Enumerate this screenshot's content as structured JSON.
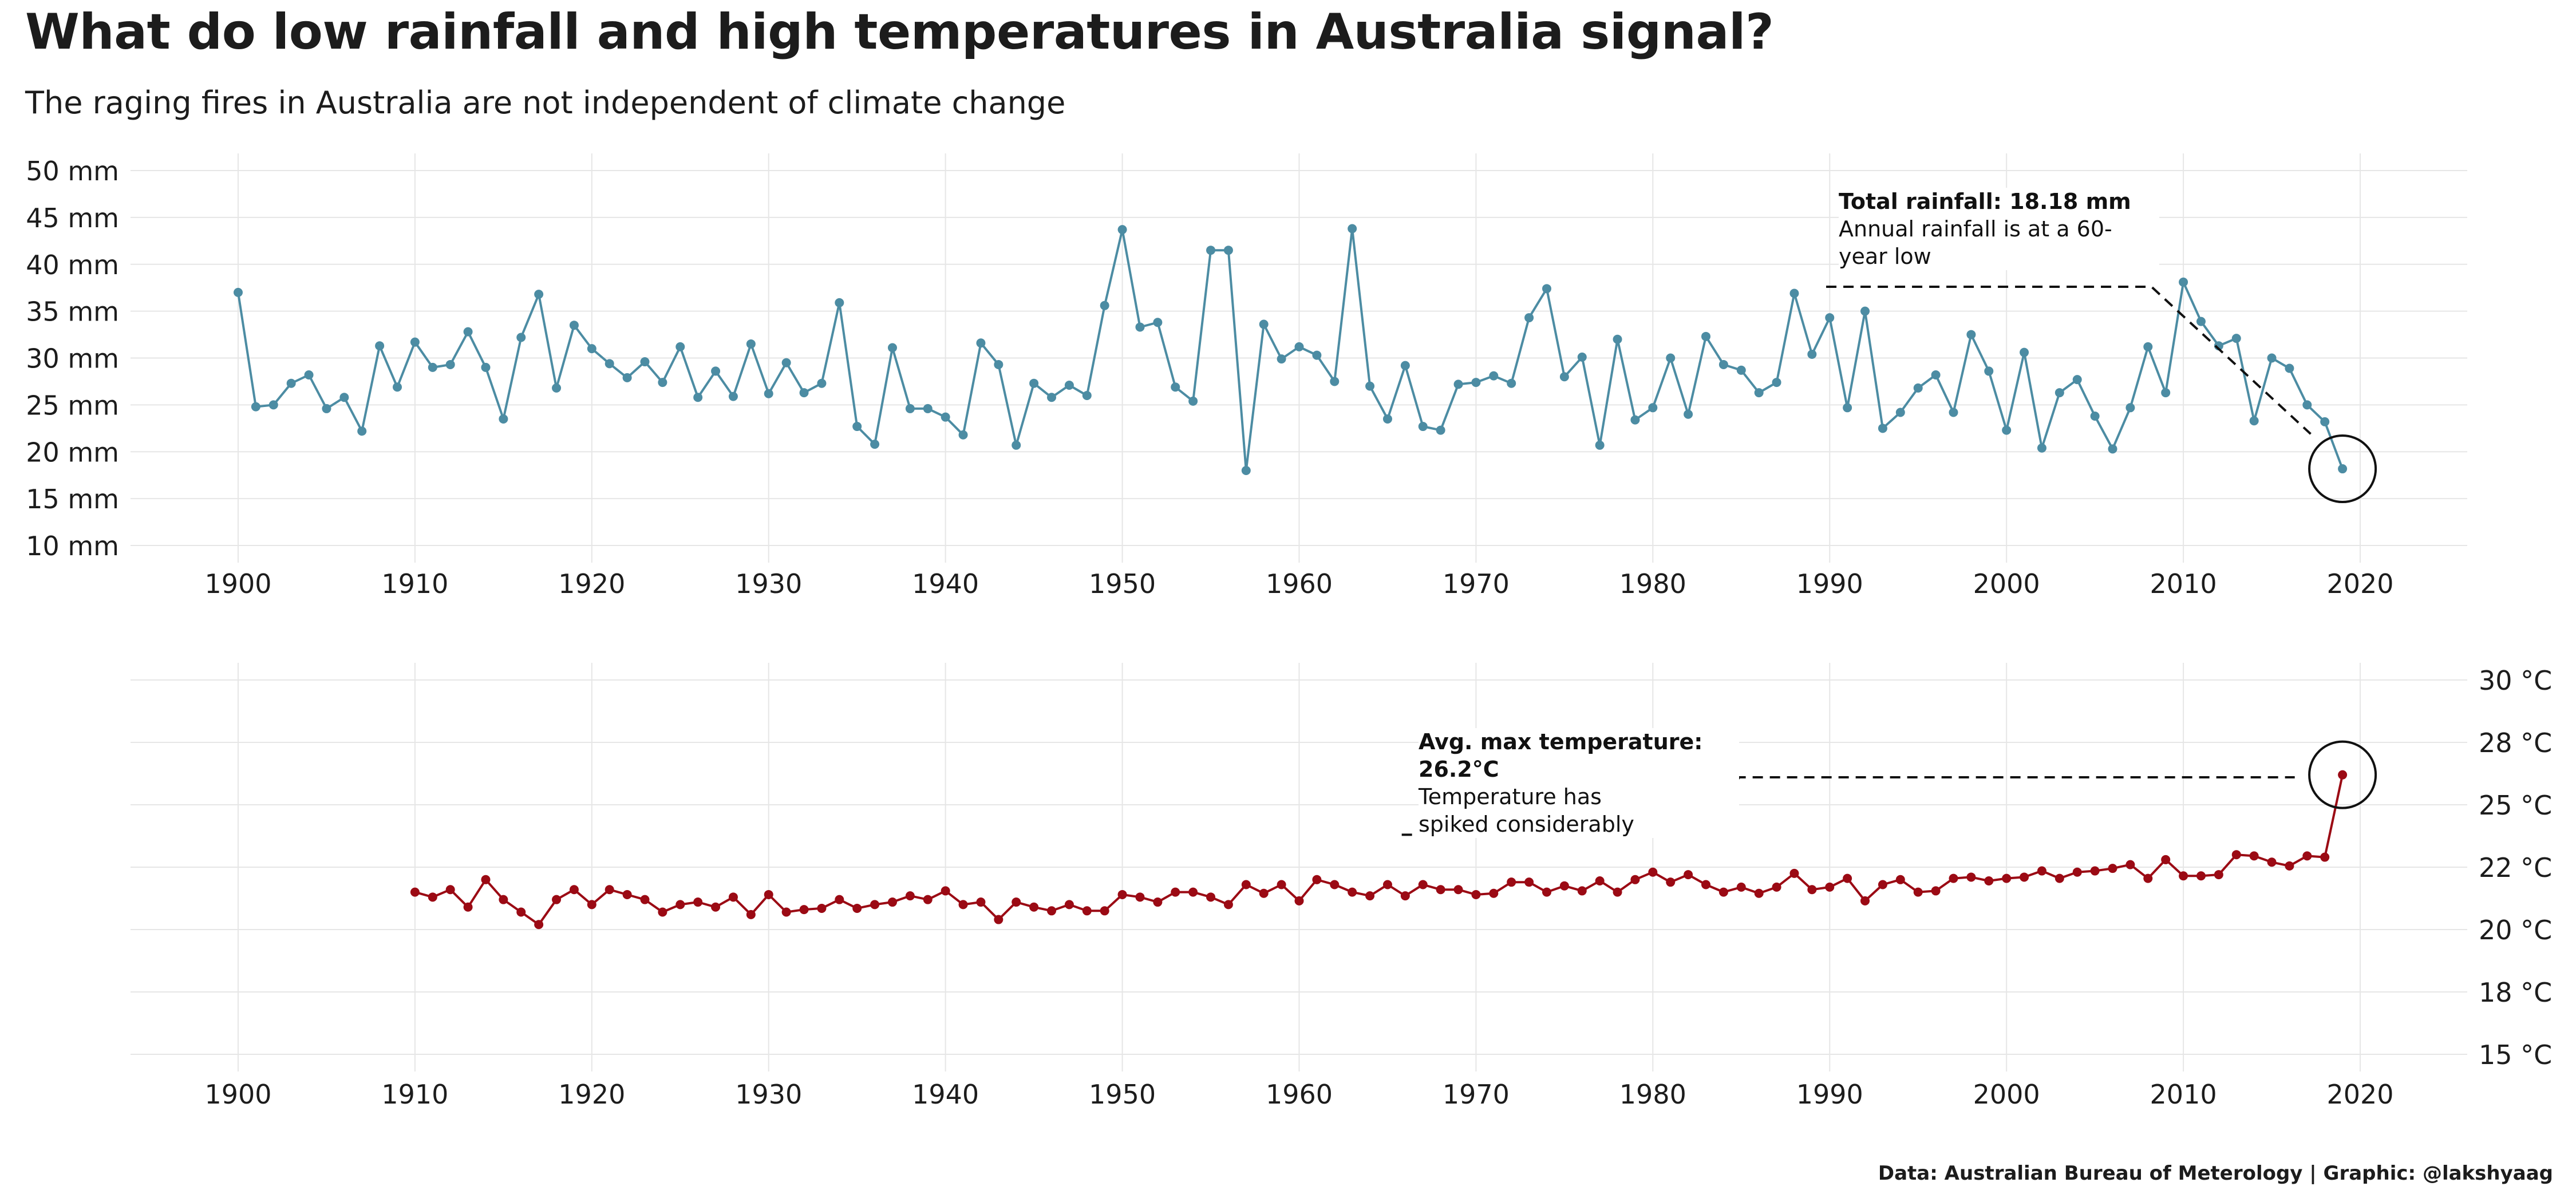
{
  "title": "What do low rainfall and high temperatures in Australia signal?",
  "subtitle": "The raging fires in Australia are not independent of climate change",
  "caption": "Data: Australian Bureau of Meterology | Graphic: @lakshyaag",
  "colors": {
    "rain": "#4c8ca3",
    "temp": "#9b0a14",
    "grid": "#e6e6e6"
  },
  "chart_data": [
    {
      "type": "line",
      "name": "rainfall",
      "title": "",
      "xlabel": "",
      "ylabel": "",
      "x": [
        1900,
        1901,
        1902,
        1903,
        1904,
        1905,
        1906,
        1907,
        1908,
        1909,
        1910,
        1911,
        1912,
        1913,
        1914,
        1915,
        1916,
        1917,
        1918,
        1919,
        1920,
        1921,
        1922,
        1923,
        1924,
        1925,
        1926,
        1927,
        1928,
        1929,
        1930,
        1931,
        1932,
        1933,
        1934,
        1935,
        1936,
        1937,
        1938,
        1939,
        1940,
        1941,
        1942,
        1943,
        1944,
        1945,
        1946,
        1947,
        1948,
        1949,
        1950,
        1951,
        1952,
        1953,
        1954,
        1955,
        1956,
        1957,
        1958,
        1959,
        1960,
        1961,
        1962,
        1963,
        1964,
        1965,
        1966,
        1967,
        1968,
        1969,
        1970,
        1971,
        1972,
        1973,
        1974,
        1975,
        1976,
        1977,
        1978,
        1979,
        1980,
        1981,
        1982,
        1983,
        1984,
        1985,
        1986,
        1987,
        1988,
        1989,
        1990,
        1991,
        1992,
        1993,
        1994,
        1995,
        1996,
        1997,
        1998,
        1999,
        2000,
        2001,
        2002,
        2003,
        2004,
        2005,
        2006,
        2007,
        2008,
        2009,
        2010,
        2011,
        2012,
        2013,
        2014,
        2015,
        2016,
        2017,
        2018,
        2019
      ],
      "values": [
        37.0,
        24.8,
        25.0,
        27.3,
        28.2,
        24.6,
        25.8,
        22.2,
        31.3,
        26.9,
        31.7,
        29.0,
        29.3,
        32.8,
        29.0,
        23.5,
        32.2,
        36.8,
        26.8,
        33.5,
        31.0,
        29.4,
        27.9,
        29.6,
        27.4,
        31.2,
        25.8,
        28.6,
        25.9,
        31.5,
        26.2,
        29.5,
        26.3,
        27.3,
        35.9,
        22.7,
        20.8,
        31.1,
        24.6,
        24.6,
        23.7,
        21.8,
        31.6,
        29.3,
        20.7,
        27.3,
        25.8,
        27.1,
        26.0,
        35.6,
        43.7,
        33.3,
        33.8,
        26.9,
        25.4,
        41.5,
        41.5,
        18.0,
        33.6,
        29.9,
        31.2,
        30.3,
        27.5,
        43.8,
        27.0,
        23.5,
        29.2,
        22.7,
        22.3,
        27.2,
        27.4,
        28.1,
        27.3,
        34.3,
        37.4,
        28.0,
        30.1,
        20.7,
        32.0,
        23.4,
        24.7,
        30.0,
        24.0,
        32.3,
        29.3,
        28.7,
        26.3,
        27.4,
        36.9,
        30.4,
        34.3,
        24.7,
        35.0,
        22.5,
        24.2,
        26.8,
        28.2,
        24.2,
        32.5,
        28.6,
        22.3,
        30.6,
        20.4,
        26.3,
        27.7,
        23.8,
        20.3,
        24.7,
        31.2,
        26.3,
        38.1,
        33.9,
        31.3,
        32.1,
        23.3,
        30.0,
        28.9,
        25.0,
        23.2,
        18.18
      ],
      "ylim": [
        10,
        50
      ],
      "yticks": [
        10,
        15,
        20,
        25,
        30,
        35,
        40,
        45,
        50
      ],
      "ytick_labels": [
        "10 mm",
        "15 mm",
        "20 mm",
        "25 mm",
        "30 mm",
        "35 mm",
        "40 mm",
        "45 mm",
        "50 mm"
      ],
      "xticks": [
        1900,
        1910,
        1920,
        1930,
        1940,
        1950,
        1960,
        1970,
        1980,
        1990,
        2000,
        2010,
        2020
      ],
      "xtick_labels": [
        "1900",
        "1910",
        "1920",
        "1930",
        "1940",
        "1950",
        "1960",
        "1970",
        "1980",
        "1990",
        "2000",
        "2010",
        "2020"
      ],
      "highlight": {
        "x": 2019,
        "y": 18.18
      },
      "annotation": {
        "bold": "Total rainfall: 18.18 mm",
        "text": "Annual rainfall is at a 60-year low"
      }
    },
    {
      "type": "line",
      "name": "temperature",
      "title": "",
      "xlabel": "",
      "ylabel": "",
      "x": [
        1910,
        1911,
        1912,
        1913,
        1914,
        1915,
        1916,
        1917,
        1918,
        1919,
        1920,
        1921,
        1922,
        1923,
        1924,
        1925,
        1926,
        1927,
        1928,
        1929,
        1930,
        1931,
        1932,
        1933,
        1934,
        1935,
        1936,
        1937,
        1938,
        1939,
        1940,
        1941,
        1942,
        1943,
        1944,
        1945,
        1946,
        1947,
        1948,
        1949,
        1950,
        1951,
        1952,
        1953,
        1954,
        1955,
        1956,
        1957,
        1958,
        1959,
        1960,
        1961,
        1962,
        1963,
        1964,
        1965,
        1966,
        1967,
        1968,
        1969,
        1970,
        1971,
        1972,
        1973,
        1974,
        1975,
        1976,
        1977,
        1978,
        1979,
        1980,
        1981,
        1982,
        1983,
        1984,
        1985,
        1986,
        1987,
        1988,
        1989,
        1990,
        1991,
        1992,
        1993,
        1994,
        1995,
        1996,
        1997,
        1998,
        1999,
        2000,
        2001,
        2002,
        2003,
        2004,
        2005,
        2006,
        2007,
        2008,
        2009,
        2010,
        2011,
        2012,
        2013,
        2014,
        2015,
        2016,
        2017,
        2018,
        2019
      ],
      "values": [
        21.5,
        21.3,
        21.6,
        20.9,
        22.0,
        21.2,
        20.7,
        20.2,
        21.2,
        21.6,
        21.0,
        21.6,
        21.4,
        21.2,
        20.7,
        21.0,
        21.1,
        20.9,
        21.3,
        20.6,
        21.4,
        20.7,
        20.8,
        20.85,
        21.2,
        20.85,
        21.0,
        21.1,
        21.35,
        21.2,
        21.55,
        21.0,
        21.1,
        20.4,
        21.1,
        20.9,
        20.75,
        21.0,
        20.75,
        20.75,
        21.4,
        21.3,
        21.1,
        21.5,
        21.5,
        21.3,
        21.0,
        21.8,
        21.45,
        21.8,
        21.15,
        22.0,
        21.8,
        21.5,
        21.35,
        21.8,
        21.35,
        21.8,
        21.6,
        21.6,
        21.4,
        21.45,
        21.9,
        21.9,
        21.5,
        21.75,
        21.55,
        21.95,
        21.5,
        22.0,
        22.3,
        21.9,
        22.2,
        21.8,
        21.5,
        21.7,
        21.45,
        21.7,
        22.25,
        21.6,
        21.7,
        22.05,
        21.15,
        21.8,
        22.0,
        21.5,
        21.55,
        22.05,
        22.1,
        21.95,
        22.05,
        22.1,
        22.35,
        22.05,
        22.3,
        22.35,
        22.45,
        22.6,
        22.05,
        22.8,
        22.15,
        22.15,
        22.2,
        23.0,
        22.95,
        22.7,
        22.55,
        22.95,
        22.9,
        26.2
      ],
      "ylim": [
        15,
        30
      ],
      "yticks": [
        15,
        17.5,
        20,
        22.5,
        25,
        27.5,
        30
      ],
      "ytick_labels": [
        "15 °C",
        "18 °C",
        "20 °C",
        "22 °C",
        "25 °C",
        "28 °C",
        "30 °C"
      ],
      "xticks": [
        1900,
        1910,
        1920,
        1930,
        1940,
        1950,
        1960,
        1970,
        1980,
        1990,
        2000,
        2010,
        2020
      ],
      "xtick_labels": [
        "1900",
        "1910",
        "1920",
        "1930",
        "1940",
        "1950",
        "1960",
        "1970",
        "1980",
        "1990",
        "2000",
        "2010",
        "2020"
      ],
      "highlight": {
        "x": 2019,
        "y": 26.2
      },
      "annotation": {
        "bold": "Avg. max temperature: 26.2°C",
        "text": "Temperature has spiked considerably"
      }
    }
  ]
}
